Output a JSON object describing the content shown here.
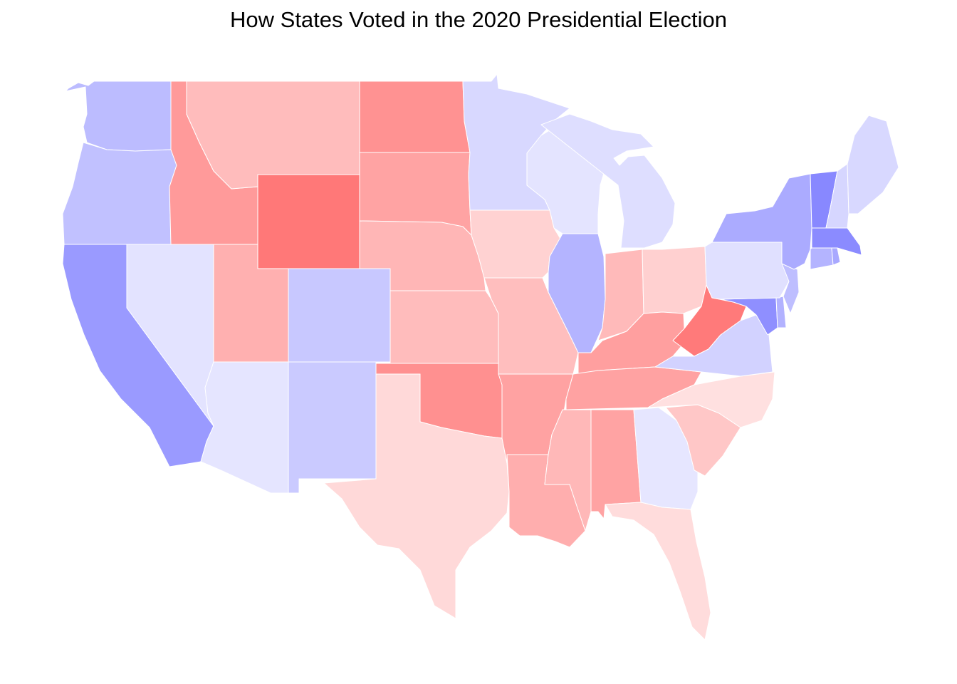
{
  "title": "How States Voted in the 2020 Presidential Election",
  "map": {
    "type": "choropleth",
    "region": "contiguous United States",
    "color_scale": "diverging blue (Democratic) to red (Republican); deeper color = larger margin",
    "states": [
      {
        "code": "WA",
        "name": "Washington",
        "color": "#bcbcff"
      },
      {
        "code": "OR",
        "name": "Oregon",
        "color": "#c1c1ff"
      },
      {
        "code": "CA",
        "name": "California",
        "color": "#9a9aff"
      },
      {
        "code": "NV",
        "name": "Nevada",
        "color": "#e3e3ff"
      },
      {
        "code": "ID",
        "name": "Idaho",
        "color": "#ff9a9a"
      },
      {
        "code": "MT",
        "name": "Montana",
        "color": "#ffbcbc"
      },
      {
        "code": "WY",
        "name": "Wyoming",
        "color": "#ff7878"
      },
      {
        "code": "UT",
        "name": "Utah",
        "color": "#ffb0b0"
      },
      {
        "code": "AZ",
        "name": "Arizona",
        "color": "#e5e5ff"
      },
      {
        "code": "CO",
        "name": "Colorado",
        "color": "#c8c8ff"
      },
      {
        "code": "NM",
        "name": "New Mexico",
        "color": "#cacaff"
      },
      {
        "code": "ND",
        "name": "North Dakota",
        "color": "#ff9292"
      },
      {
        "code": "SD",
        "name": "South Dakota",
        "color": "#ffa3a3"
      },
      {
        "code": "NE",
        "name": "Nebraska",
        "color": "#ffb6b6"
      },
      {
        "code": "KS",
        "name": "Kansas",
        "color": "#ffbcbc"
      },
      {
        "code": "OK",
        "name": "Oklahoma",
        "color": "#ff9090"
      },
      {
        "code": "TX",
        "name": "Texas",
        "color": "#ffd9d9"
      },
      {
        "code": "MN",
        "name": "Minnesota",
        "color": "#d8d8ff"
      },
      {
        "code": "IA",
        "name": "Iowa",
        "color": "#ffd2d2"
      },
      {
        "code": "MO",
        "name": "Missouri",
        "color": "#ffbebe"
      },
      {
        "code": "AR",
        "name": "Arkansas",
        "color": "#ffa2a2"
      },
      {
        "code": "LA",
        "name": "Louisiana",
        "color": "#ffaeae"
      },
      {
        "code": "WI",
        "name": "Wisconsin",
        "color": "#e4e4ff"
      },
      {
        "code": "IL",
        "name": "Illinois",
        "color": "#b4b4ff"
      },
      {
        "code": "MI",
        "name": "Michigan",
        "color": "#dedeff"
      },
      {
        "code": "IN",
        "name": "Indiana",
        "color": "#ffbaba"
      },
      {
        "code": "OH",
        "name": "Ohio",
        "color": "#ffd0d0"
      },
      {
        "code": "KY",
        "name": "Kentucky",
        "color": "#ff9f9f"
      },
      {
        "code": "TN",
        "name": "Tennessee",
        "color": "#ffa2a2"
      },
      {
        "code": "MS",
        "name": "Mississippi",
        "color": "#ffb8b8"
      },
      {
        "code": "AL",
        "name": "Alabama",
        "color": "#ffa3a3"
      },
      {
        "code": "WV",
        "name": "West Virginia",
        "color": "#ff7a7a"
      },
      {
        "code": "VA",
        "name": "Virginia",
        "color": "#d2d2ff"
      },
      {
        "code": "NC",
        "name": "North Carolina",
        "color": "#ffe0e0"
      },
      {
        "code": "SC",
        "name": "South Carolina",
        "color": "#ffc7c7"
      },
      {
        "code": "GA",
        "name": "Georgia",
        "color": "#e6e6ff"
      },
      {
        "code": "FL",
        "name": "Florida",
        "color": "#ffdcdc"
      },
      {
        "code": "PA",
        "name": "Pennsylvania",
        "color": "#e0e0ff"
      },
      {
        "code": "NY",
        "name": "New York",
        "color": "#ababff"
      },
      {
        "code": "NJ",
        "name": "New Jersey",
        "color": "#bebeff"
      },
      {
        "code": "DE",
        "name": "Delaware",
        "color": "#b2b2ff"
      },
      {
        "code": "MD",
        "name": "Maryland",
        "color": "#8f8fff"
      },
      {
        "code": "VT",
        "name": "Vermont",
        "color": "#8888ff"
      },
      {
        "code": "NH",
        "name": "New Hampshire",
        "color": "#d6d6ff"
      },
      {
        "code": "ME",
        "name": "Maine",
        "color": "#d8d8ff"
      },
      {
        "code": "MA",
        "name": "Massachusetts",
        "color": "#8b8bff"
      },
      {
        "code": "CT",
        "name": "Connecticut",
        "color": "#b4b4ff"
      },
      {
        "code": "RI",
        "name": "Rhode Island",
        "color": "#a8a8ff"
      }
    ]
  }
}
